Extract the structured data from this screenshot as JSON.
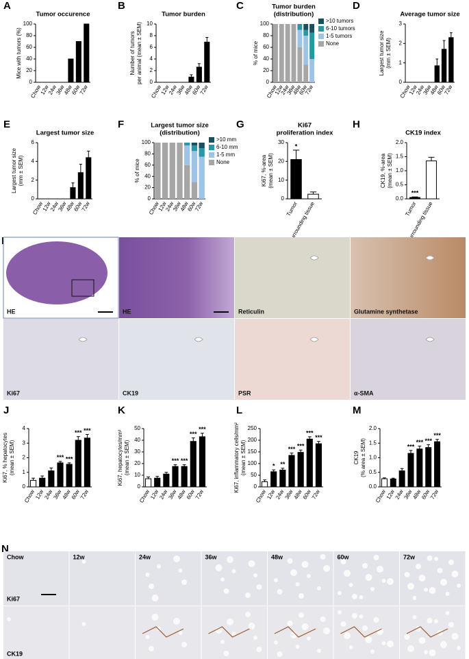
{
  "chart_data": [
    {
      "label": "A",
      "type": "bar",
      "title": [
        "Tumor occurence"
      ],
      "ylabel": [
        "Mice with tumors (%)"
      ],
      "categories": [
        "Chow",
        "12w",
        "24w",
        "36w",
        "48w",
        "60w",
        "72w"
      ],
      "values": [
        0,
        0,
        0,
        0,
        40,
        70,
        100
      ],
      "colors": [
        "#000000",
        "#000000",
        "#000000",
        "#000000",
        "#000000",
        "#000000",
        "#000000"
      ],
      "ylim": [
        0,
        100
      ],
      "yticks": [
        0,
        20,
        40,
        60,
        80,
        100
      ]
    },
    {
      "label": "B",
      "type": "bar",
      "title": [
        "Tumor burden"
      ],
      "ylabel": [
        "Number of tumors",
        "per animal (mean ± SEM)"
      ],
      "categories": [
        "Chow",
        "12w",
        "24w",
        "36w",
        "48w",
        "60w",
        "72w"
      ],
      "values": [
        0,
        0,
        0,
        0,
        0.9,
        2.6,
        6.9
      ],
      "errors": [
        0,
        0,
        0,
        0,
        0.4,
        0.6,
        0.8
      ],
      "colors": [
        "#000000",
        "#000000",
        "#000000",
        "#000000",
        "#000000",
        "#000000",
        "#000000"
      ],
      "ylim": [
        0,
        10
      ],
      "yticks": [
        0,
        2,
        4,
        6,
        8,
        10
      ]
    },
    {
      "label": "C",
      "type": "stacked",
      "title": [
        "Tumor burden",
        "(distribution)"
      ],
      "ylabel": [
        "% of mice"
      ],
      "categories": [
        "Chow",
        "12w",
        "24w",
        "36w",
        "48w",
        "60w",
        "72w"
      ],
      "series": [
        {
          "name": "None",
          "color": "#a6a6a6",
          "values": [
            100,
            100,
            100,
            100,
            60,
            30,
            0
          ]
        },
        {
          "name": "1-5 tumors",
          "color": "#9dc3e6",
          "values": [
            0,
            0,
            0,
            0,
            30,
            50,
            40
          ]
        },
        {
          "name": "6-10 tumors",
          "color": "#2a97a6",
          "values": [
            0,
            0,
            0,
            0,
            10,
            10,
            45
          ]
        },
        {
          "name": ">10 tumors",
          "color": "#1b4e5e",
          "values": [
            0,
            0,
            0,
            0,
            0,
            10,
            15
          ]
        }
      ],
      "ylim": [
        0,
        100
      ],
      "yticks": [
        0,
        20,
        40,
        60,
        80,
        100
      ]
    },
    {
      "label": "D",
      "type": "bar",
      "title": [
        "Average tumor size"
      ],
      "ylabel": [
        "Largest tumor size",
        "(mm ± SEM)"
      ],
      "categories": [
        "Chow",
        "12w",
        "24w",
        "36w",
        "48w",
        "60w",
        "72w"
      ],
      "values": [
        0,
        0,
        0,
        0,
        0.85,
        1.7,
        2.3
      ],
      "errors": [
        0,
        0,
        0,
        0,
        0.35,
        0.45,
        0.25
      ],
      "colors": [
        "#000000",
        "#000000",
        "#000000",
        "#000000",
        "#000000",
        "#000000",
        "#000000"
      ],
      "ylim": [
        0,
        3
      ],
      "yticks": [
        0,
        1,
        2,
        3
      ]
    },
    {
      "label": "E",
      "type": "bar",
      "title": [
        "Largest tumor size"
      ],
      "ylabel": [
        "Largest tumor size",
        "(mm ± SEM)"
      ],
      "categories": [
        "Chow",
        "12w",
        "24w",
        "36w",
        "48w",
        "60w",
        "72w"
      ],
      "values": [
        0,
        0,
        0,
        0,
        1.2,
        2.8,
        4.4
      ],
      "errors": [
        0,
        0,
        0,
        0,
        0.5,
        0.9,
        0.7
      ],
      "colors": [
        "#000000",
        "#000000",
        "#000000",
        "#000000",
        "#000000",
        "#000000",
        "#000000"
      ],
      "ylim": [
        0,
        6
      ],
      "yticks": [
        0,
        2,
        4,
        6
      ]
    },
    {
      "label": "F",
      "type": "stacked",
      "title": [
        "Largest tumor size",
        "(distribution)"
      ],
      "ylabel": [
        "% of mice"
      ],
      "categories": [
        "Chow",
        "12w",
        "24w",
        "36w",
        "48w",
        "60w",
        "72w"
      ],
      "series": [
        {
          "name": "None",
          "color": "#a6a6a6",
          "values": [
            100,
            100,
            100,
            100,
            60,
            30,
            0
          ]
        },
        {
          "name": "1-5 mm",
          "color": "#9dc3e6",
          "values": [
            0,
            0,
            0,
            0,
            35,
            55,
            75
          ]
        },
        {
          "name": "6-10 mm",
          "color": "#2a97a6",
          "values": [
            0,
            0,
            0,
            0,
            5,
            10,
            15
          ]
        },
        {
          "name": ">10 mm",
          "color": "#1b4e5e",
          "values": [
            0,
            0,
            0,
            0,
            0,
            5,
            10
          ]
        }
      ],
      "ylim": [
        0,
        100
      ],
      "yticks": [
        0,
        20,
        40,
        60,
        80,
        100
      ]
    },
    {
      "label": "G",
      "type": "bar",
      "title": [
        "Ki67",
        "proliferation index"
      ],
      "ylabel": [
        "Ki67, %-area",
        "(mean ± SEM)"
      ],
      "categories": [
        "Tumor",
        "Surrounding tissue"
      ],
      "values": [
        21,
        2.5
      ],
      "errors": [
        5,
        1.2
      ],
      "annotations": [
        "*",
        null
      ],
      "colors": [
        "#000000",
        "#ffffff"
      ],
      "ylim": [
        0,
        30
      ],
      "yticks": [
        0,
        10,
        20,
        30
      ]
    },
    {
      "label": "H",
      "type": "bar",
      "title": [
        "CK19 index"
      ],
      "ylabel": [
        "CK19, %-area",
        "(mean ± SEM)"
      ],
      "categories": [
        "Tumor",
        "Surrounding tissue"
      ],
      "values": [
        0.05,
        1.35
      ],
      "errors": [
        0.02,
        0.13
      ],
      "annotations": [
        "***",
        null
      ],
      "colors": [
        "#000000",
        "#ffffff"
      ],
      "ylim": [
        0,
        2
      ],
      "yticks": [
        {
          "value": 0,
          "label": "0.0"
        },
        {
          "value": 0.5,
          "label": "0.5"
        },
        {
          "value": 1,
          "label": "1.0"
        },
        {
          "value": 1.5,
          "label": "1.5"
        },
        {
          "value": 2,
          "label": "2.0"
        }
      ]
    },
    {
      "label": "J",
      "type": "bar",
      "ylabel": [
        "Ki67, % hepatocytes",
        "(mean ± SEM)"
      ],
      "categories": [
        "Chow",
        "12w",
        "24w",
        "36w",
        "48w",
        "60w",
        "72w"
      ],
      "values": [
        0.45,
        0.6,
        1.1,
        1.65,
        1.55,
        3.2,
        3.35
      ],
      "errors": [
        0.15,
        0.15,
        0.2,
        0.1,
        0.1,
        0.25,
        0.25
      ],
      "annotations": [
        null,
        null,
        null,
        "***",
        "***",
        "***",
        "***"
      ],
      "colors": [
        "#ffffff",
        "#000000",
        "#000000",
        "#000000",
        "#000000",
        "#000000",
        "#000000"
      ],
      "ylim": [
        0,
        4
      ],
      "yticks": [
        0,
        1,
        2,
        3,
        4
      ]
    },
    {
      "label": "K",
      "type": "bar",
      "ylabel": [
        "Ki67, hepatocytes/mm²",
        "(mean ± SEM)"
      ],
      "categories": [
        "Chow",
        "12w",
        "24w",
        "36w",
        "48w",
        "60w",
        "72w"
      ],
      "values": [
        7,
        7.5,
        11,
        17.5,
        17.5,
        39,
        43
      ],
      "errors": [
        1.5,
        1.5,
        1.5,
        1.5,
        1.5,
        3,
        3
      ],
      "annotations": [
        null,
        null,
        null,
        "***",
        "***",
        "***",
        "***"
      ],
      "colors": [
        "#ffffff",
        "#000000",
        "#000000",
        "#000000",
        "#000000",
        "#000000",
        "#000000"
      ],
      "ylim": [
        0,
        50
      ],
      "yticks": [
        0,
        10,
        20,
        30,
        40,
        50
      ]
    },
    {
      "label": "L",
      "type": "bar",
      "ylabel": [
        "Ki67, inflammatory cells/mm²",
        "(mean ± SEM)"
      ],
      "categories": [
        "Chow",
        "12w",
        "24w",
        "36w",
        "48w",
        "60w",
        "72w"
      ],
      "values": [
        22,
        65,
        72,
        135,
        148,
        205,
        185
      ],
      "errors": [
        8,
        8,
        8,
        10,
        10,
        10,
        10
      ],
      "annotations": [
        null,
        "*",
        "**",
        "***",
        "***",
        "***",
        "***"
      ],
      "colors": [
        "#ffffff",
        "#000000",
        "#000000",
        "#000000",
        "#000000",
        "#000000",
        "#000000"
      ],
      "ylim": [
        0,
        250
      ],
      "yticks": [
        0,
        50,
        100,
        150,
        200,
        250
      ]
    },
    {
      "label": "M",
      "type": "bar",
      "ylabel": [
        "CK19",
        "(% area ± SEM)"
      ],
      "categories": [
        "Chow",
        "12w",
        "24w",
        "36w",
        "48w",
        "60w",
        "72w"
      ],
      "values": [
        0.28,
        0.27,
        0.55,
        1.15,
        1.3,
        1.35,
        1.55
      ],
      "errors": [
        0.03,
        0.03,
        0.08,
        0.1,
        0.1,
        0.1,
        0.08
      ],
      "annotations": [
        null,
        null,
        null,
        "***",
        "***",
        "***",
        "***"
      ],
      "colors": [
        "#ffffff",
        "#000000",
        "#000000",
        "#000000",
        "#000000",
        "#000000",
        "#000000"
      ],
      "ylim": [
        0,
        2
      ],
      "yticks": [
        {
          "value": 0,
          "label": "0.0"
        },
        {
          "value": 0.5,
          "label": "0.5"
        },
        {
          "value": 1,
          "label": "1.0"
        },
        {
          "value": 1.5,
          "label": "1.5"
        },
        {
          "value": 2,
          "label": "2.0"
        }
      ]
    }
  ],
  "panel_i": {
    "label": "I",
    "images": [
      "HE",
      "HE",
      "Reticulin",
      "Glutamine synthetase",
      "Ki67",
      "CK19",
      "PSR",
      "α-SMA"
    ]
  },
  "panel_n": {
    "label": "N",
    "columns": [
      "Chow",
      "12w",
      "24w",
      "36w",
      "48w",
      "60w",
      "72w"
    ],
    "rows": [
      "Ki67",
      "CK19"
    ]
  }
}
